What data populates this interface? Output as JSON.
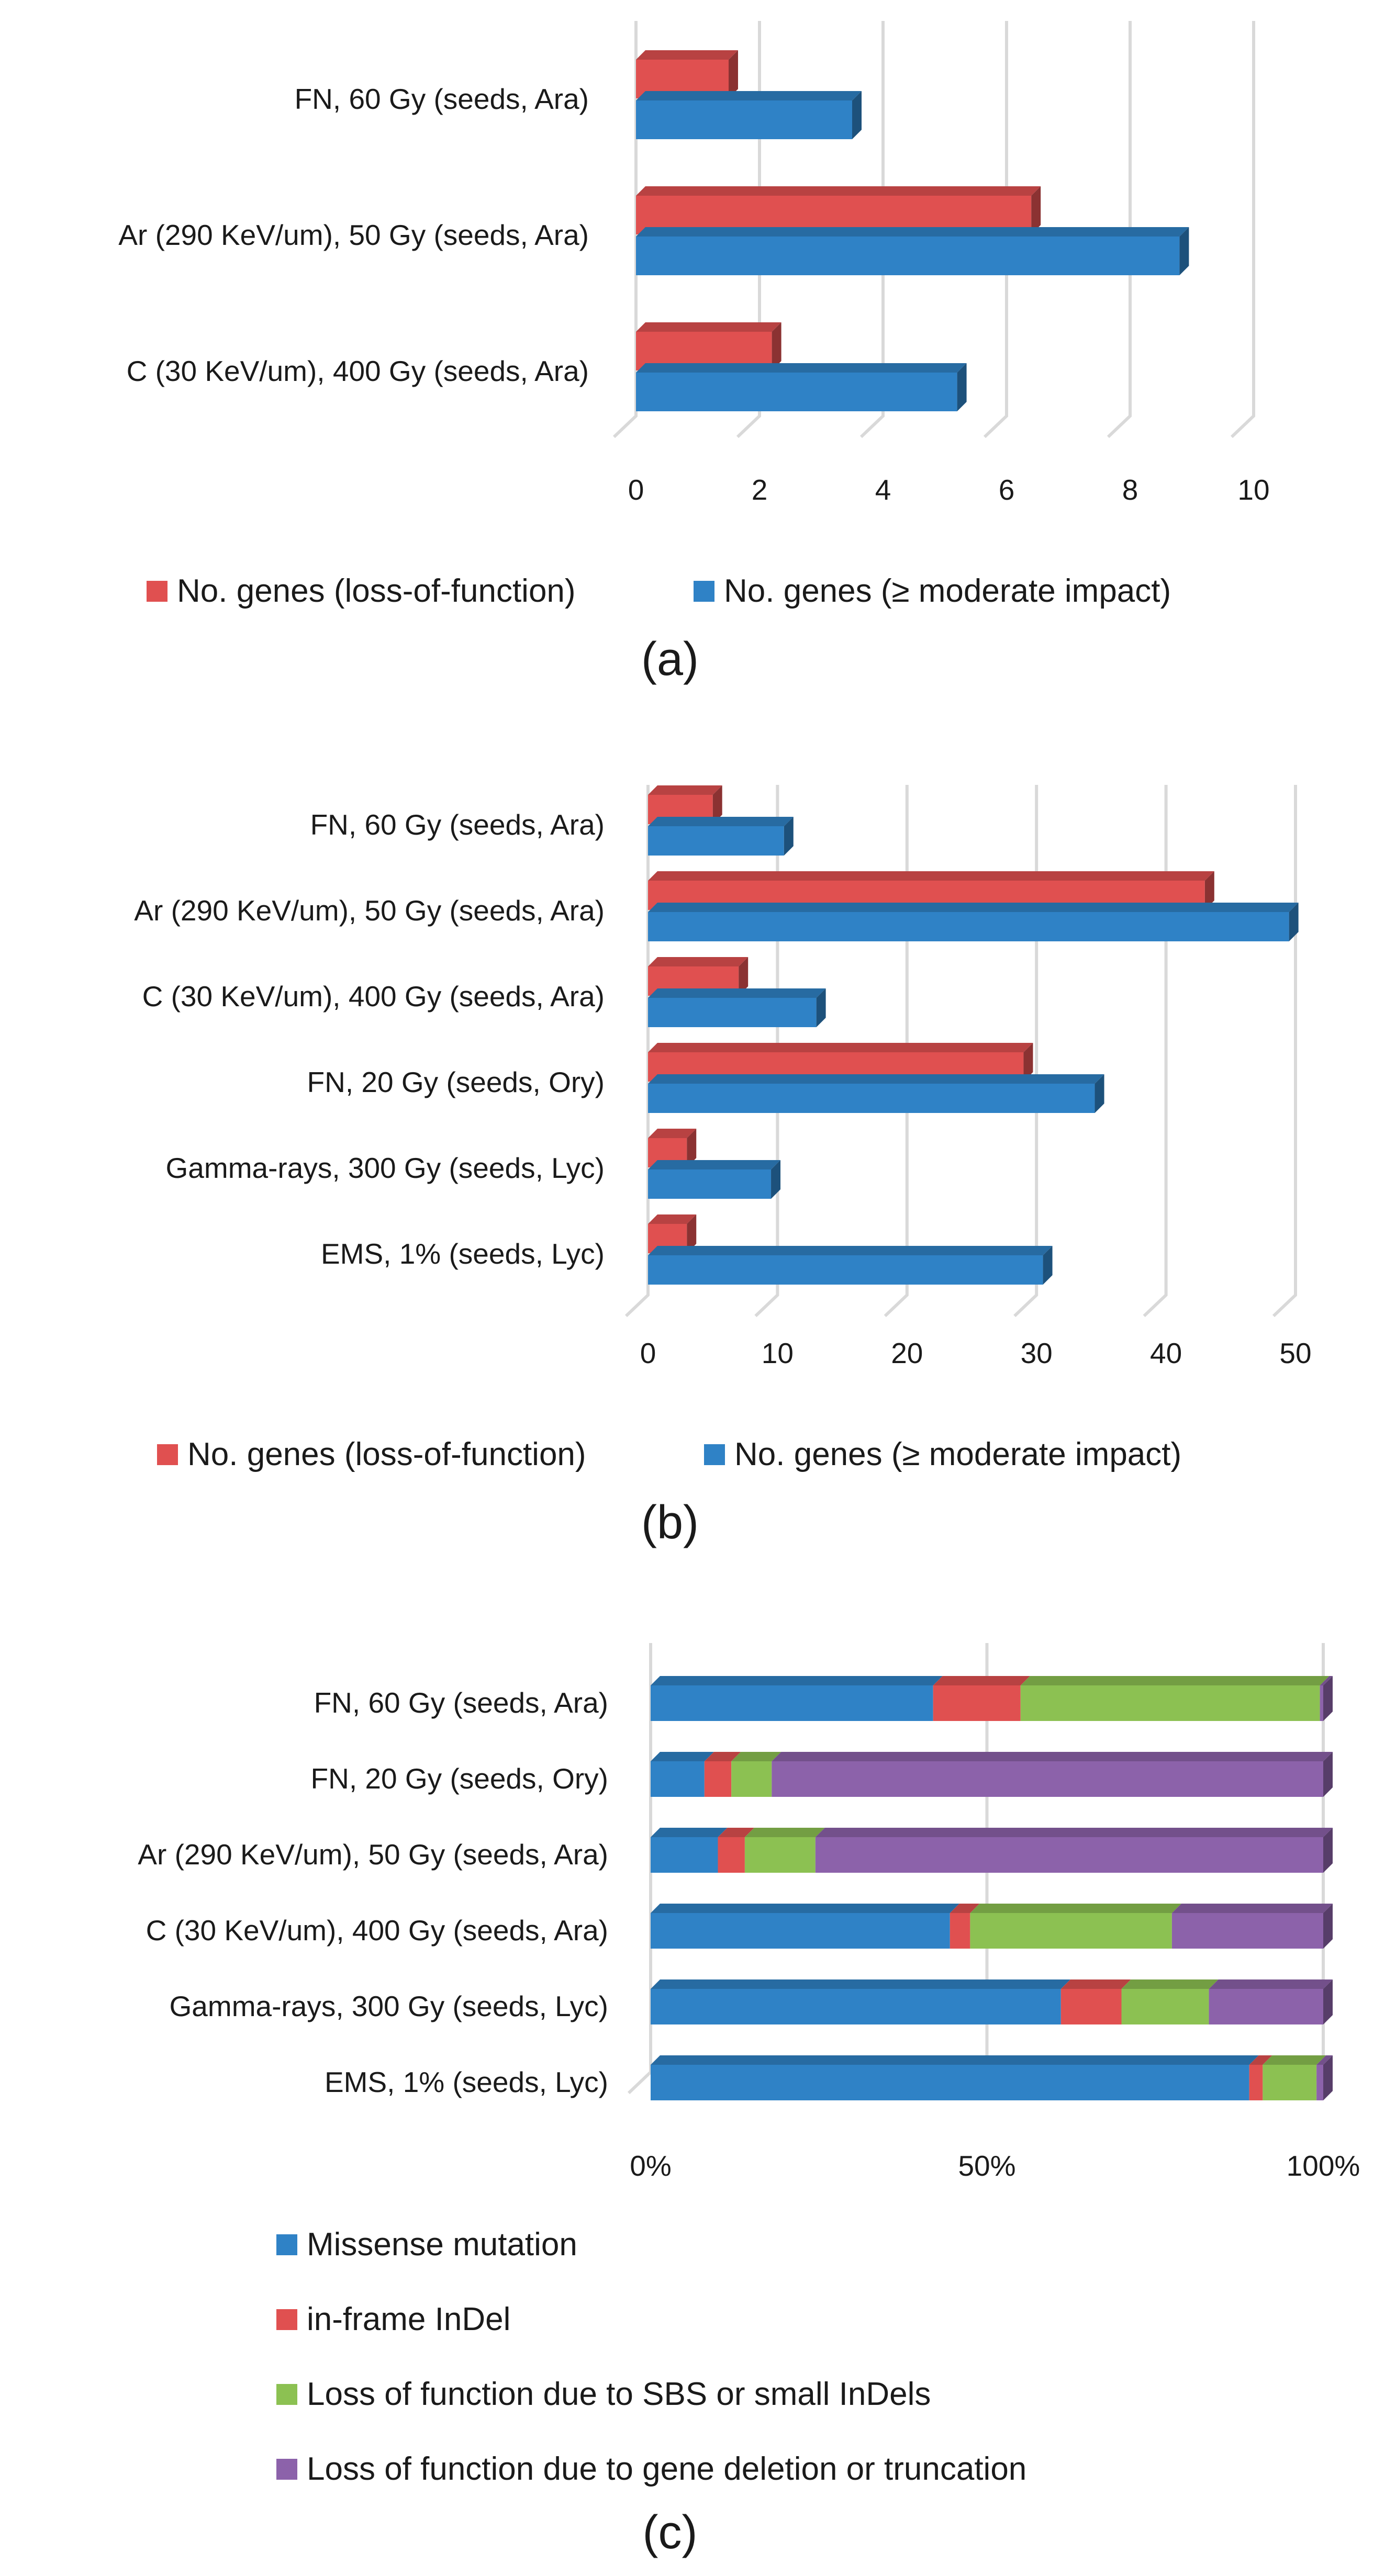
{
  "colors": {
    "loss_of_function": "#e05050",
    "moderate_impact": "#2f82c6",
    "missense": "#2f82c6",
    "inframe_indel": "#e05050",
    "lof_sbs": "#8cc152",
    "lof_deletion": "#8c62aa"
  },
  "chart_data": [
    {
      "id": "a",
      "type": "bar",
      "orientation": "horizontal",
      "panel_label": "(a)",
      "categories": [
        "FN, 60 Gy (seeds, Ara)",
        "Ar (290 KeV/um), 50 Gy (seeds, Ara)",
        "C (30 KeV/um), 400 Gy (seeds, Ara)"
      ],
      "series": [
        {
          "name": "No. genes (loss-of-function)",
          "color_key": "loss_of_function",
          "values": [
            1.5,
            6.4,
            2.2
          ]
        },
        {
          "name": "No. genes (≥ moderate impact)",
          "color_key": "moderate_impact",
          "values": [
            3.5,
            8.8,
            5.2
          ]
        }
      ],
      "xlim": [
        0,
        10
      ],
      "xticks": [
        0,
        2,
        4,
        6,
        8,
        10
      ],
      "tick_labels": [
        "0",
        "2",
        "4",
        "6",
        "8",
        "10"
      ],
      "grid": true,
      "legend_position": "bottom"
    },
    {
      "id": "b",
      "type": "bar",
      "orientation": "horizontal",
      "panel_label": "(b)",
      "categories": [
        "FN, 60 Gy (seeds, Ara)",
        "Ar (290 KeV/um), 50 Gy (seeds, Ara)",
        "C (30 KeV/um), 400 Gy (seeds, Ara)",
        "FN, 20 Gy (seeds, Ory)",
        "Gamma-rays, 300 Gy (seeds, Lyc)",
        "EMS, 1% (seeds, Lyc)"
      ],
      "series": [
        {
          "name": "No. genes (loss-of-function)",
          "color_key": "loss_of_function",
          "values": [
            5,
            43,
            7,
            29,
            3,
            3
          ]
        },
        {
          "name": "No. genes (≥ moderate impact)",
          "color_key": "moderate_impact",
          "values": [
            10.5,
            49.5,
            13,
            34.5,
            9.5,
            30.5
          ]
        }
      ],
      "xlim": [
        0,
        50
      ],
      "xticks": [
        0,
        10,
        20,
        30,
        40,
        50
      ],
      "tick_labels": [
        "0",
        "10",
        "20",
        "30",
        "40",
        "50"
      ],
      "grid": true,
      "legend_position": "bottom"
    },
    {
      "id": "c",
      "type": "bar",
      "orientation": "horizontal",
      "stacked": true,
      "percent": true,
      "panel_label": "(c)",
      "categories": [
        "FN, 60 Gy (seeds, Ara)",
        "FN, 20 Gy (seeds, Ory)",
        "Ar (290 KeV/um), 50 Gy (seeds, Ara)",
        "C (30 KeV/um), 400 Gy (seeds, Ara)",
        "Gamma-rays, 300 Gy (seeds, Lyc)",
        "EMS, 1% (seeds, Lyc)"
      ],
      "series": [
        {
          "name": "Missense mutation",
          "color_key": "missense",
          "values": [
            42,
            8,
            10,
            44.5,
            61,
            89
          ]
        },
        {
          "name": "in-frame InDel",
          "color_key": "inframe_indel",
          "values": [
            13,
            4,
            4,
            3,
            9,
            2
          ]
        },
        {
          "name": "Loss of function due to SBS or small InDels",
          "color_key": "lof_sbs",
          "values": [
            44.5,
            6,
            10.5,
            30,
            13,
            8
          ]
        },
        {
          "name": "Loss of function due to gene deletion or truncation",
          "color_key": "lof_deletion",
          "values": [
            0.5,
            82,
            75.5,
            22.5,
            17,
            1
          ]
        }
      ],
      "xlim": [
        0,
        100
      ],
      "xticks": [
        0,
        50,
        100
      ],
      "tick_labels": [
        "0%",
        "50%",
        "100%"
      ],
      "grid": true,
      "legend_position": "bottom"
    }
  ]
}
